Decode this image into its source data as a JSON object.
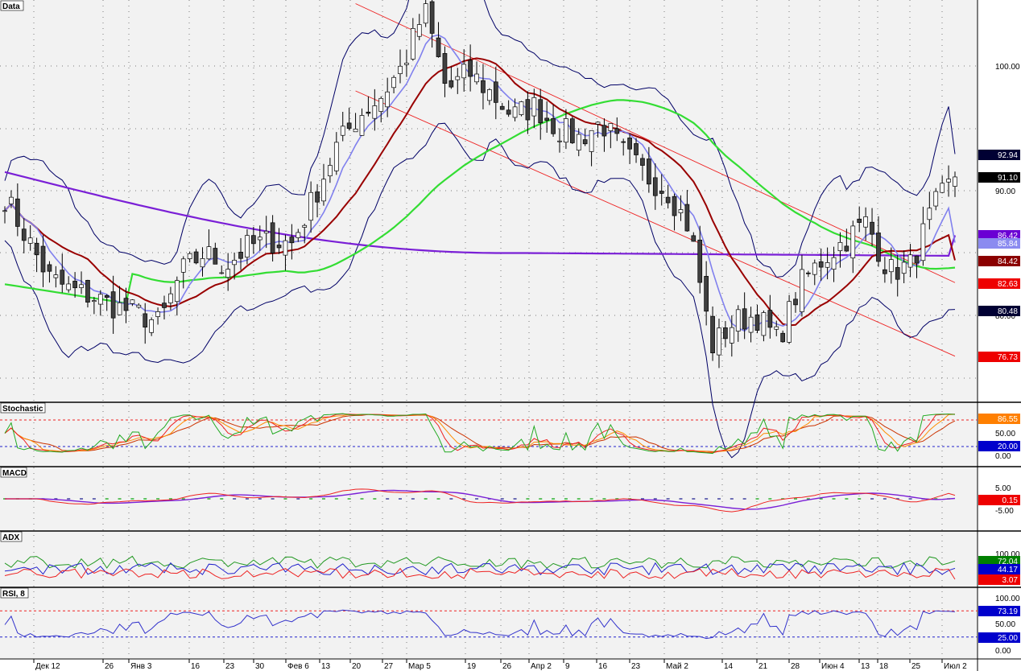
{
  "panes": {
    "data": "Data",
    "stochastic": "Stochastic",
    "macd": "MACD",
    "adx": "ADX",
    "rsi": "RSI, 8"
  },
  "x_axis": {
    "labels": [
      "Дек 12",
      "26",
      "Янв 3",
      "16",
      "23",
      "30",
      "Фев 6",
      "13",
      "20",
      "27",
      "Мар 5",
      "19",
      "26",
      "Апр 2",
      "9",
      "16",
      "23",
      "Май 2",
      "14",
      "21",
      "28",
      "Июн 4",
      "13",
      "18",
      "25",
      "Июл 2"
    ]
  },
  "price_axis": {
    "ticks": [
      "100.00",
      "90.00",
      "80.00"
    ]
  },
  "stochastic_axis": {
    "ticks": [
      "50.00",
      "0.00"
    ]
  },
  "macd_axis": {
    "ticks": [
      "5.00",
      "-5.00"
    ]
  },
  "adx_axis": {
    "ticks": [
      "100.00"
    ]
  },
  "rsi_axis": {
    "ticks": [
      "100.00",
      "50.00",
      "0.00"
    ]
  },
  "badges": {
    "price": [
      {
        "text": "92.94",
        "color": "#000033"
      },
      {
        "text": "91.10",
        "color": "#000000"
      },
      {
        "text": "86.42",
        "color": "#6a00d4"
      },
      {
        "text": "85.84",
        "color": "#8b8bf0"
      },
      {
        "text": "84.42",
        "color": "#8b0000"
      },
      {
        "text": "82.63",
        "color": "#ee0000"
      },
      {
        "text": "80.48",
        "color": "#000033"
      },
      {
        "text": "76.73",
        "color": "#ee0000"
      }
    ],
    "stochastic": [
      {
        "text": "86.55",
        "color": "#ff7f00"
      },
      {
        "text": "20.00",
        "color": "#0000cc"
      }
    ],
    "macd": [
      {
        "text": "0.15",
        "color": "#ee0000"
      }
    ],
    "adx": [
      {
        "text": "72.04",
        "color": "#008000"
      },
      {
        "text": "44.17",
        "color": "#0000cc"
      },
      {
        "text": "3.07",
        "color": "#ee0000"
      }
    ],
    "rsi": [
      {
        "text": "73.19",
        "color": "#0000cc"
      },
      {
        "text": "25.00",
        "color": "#0000cc"
      }
    ]
  },
  "colors": {
    "background": "#f2f2f2",
    "ma_fast": "#8080ee",
    "ma_mid": "#990000",
    "ma_long": "#33dd33",
    "ma_longest": "#7a1fd6",
    "bollinger": "#000066",
    "channel": "#ee2222",
    "candle_up": "#ffffff",
    "candle_down": "#404040",
    "stoch_k": "#22aa22",
    "stoch_d": "#ee2222",
    "macd_line": "#ee2222",
    "macd_signal": "#7a1fd6",
    "rsi_line": "#3333cc"
  },
  "chart_data": {
    "type": "candlestick",
    "title": "Data",
    "x": [
      "Дек 12",
      "26",
      "Янв 3",
      "16",
      "23",
      "30",
      "Фев 6",
      "13",
      "20",
      "27",
      "Мар 5",
      "19",
      "26",
      "Апр 2",
      "9",
      "16",
      "23",
      "Май 2",
      "14",
      "21",
      "28",
      "Июн 4",
      "13",
      "18",
      "25",
      "Июл 2"
    ],
    "close_path": [
      89.5,
      86.2,
      83.0,
      82.0,
      81.5,
      80.7,
      80.2,
      79.3,
      83.5,
      85.0,
      84.0,
      85.5,
      86.0,
      85.8,
      89.5,
      93.5,
      96.0,
      97.5,
      100.0,
      104.5,
      98.0,
      99.5,
      97.8,
      96.0,
      96.8,
      95.0,
      94.2,
      95.5,
      93.0,
      91.2,
      90.0,
      87.0,
      77.5,
      79.5,
      80.0,
      78.0,
      82.5,
      84.5,
      86.0,
      87.5,
      83.5,
      84.0,
      88.5,
      91.1
    ],
    "overlays": {
      "ma_longest_end": 86.42,
      "ma_fast_end": 85.84,
      "ma_mid_end": 84.42,
      "bollinger_upper_end": 92.94,
      "bollinger_lower_end": 80.48,
      "channel_upper_end": 82.63,
      "channel_lower_end": 76.73,
      "last": 91.1
    },
    "ylim": [
      72.0,
      107.0
    ]
  }
}
